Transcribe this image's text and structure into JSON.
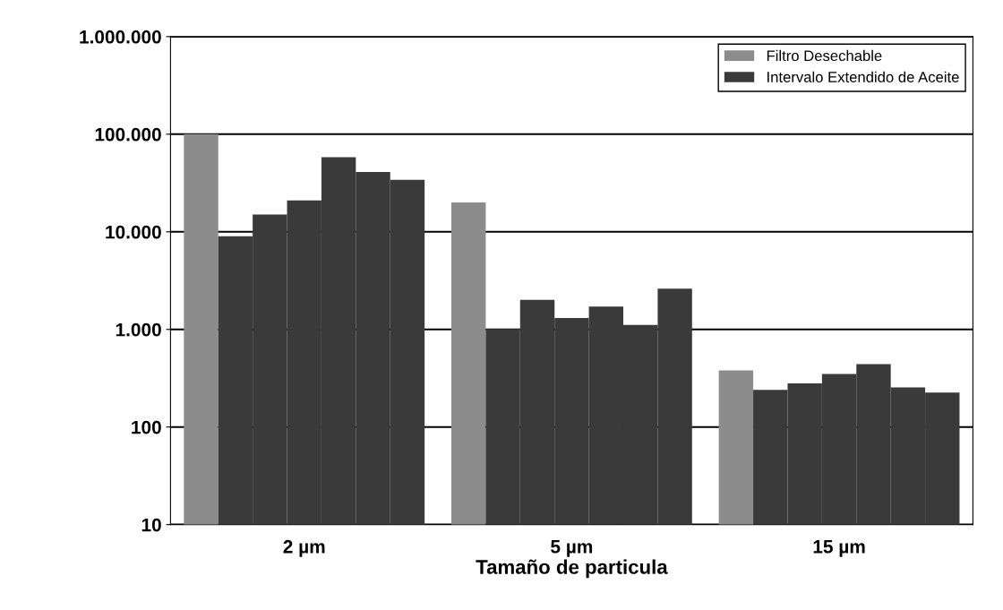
{
  "chart_data": {
    "type": "bar",
    "xlabel": "Tamaño de particula",
    "categories": [
      "2 µm",
      "5 µm",
      "15 µm"
    ],
    "series": [
      {
        "name": "Filtro Desechable",
        "color": "#8c8c8c",
        "values": [
          100000,
          20000,
          370
        ]
      },
      {
        "name": "Intervalo Extendido de Aceite",
        "color": "#3a3a3a",
        "values": [
          9000,
          1000,
          230
        ]
      },
      {
        "color": "#3a3a3a",
        "values": [
          15000,
          2000,
          270
        ]
      },
      {
        "color": "#3a3a3a",
        "values": [
          21000,
          1300,
          340
        ]
      },
      {
        "color": "#3a3a3a",
        "values": [
          58000,
          1700,
          430
        ]
      },
      {
        "color": "#3a3a3a",
        "values": [
          41000,
          1100,
          245
        ]
      },
      {
        "color": "#3a3a3a",
        "values": [
          34000,
          2600,
          215
        ]
      }
    ],
    "log": true,
    "ylim": [
      10,
      1000000
    ],
    "yticks": [
      {
        "value": 10,
        "label": "10"
      },
      {
        "value": 100,
        "label": "100"
      },
      {
        "value": 1000,
        "label": "1.000"
      },
      {
        "value": 10000,
        "label": "10.000"
      },
      {
        "value": 100000,
        "label": "100.000"
      },
      {
        "value": 1000000,
        "label": "1.000.000"
      }
    ],
    "grid": "y",
    "legend": "top right"
  }
}
